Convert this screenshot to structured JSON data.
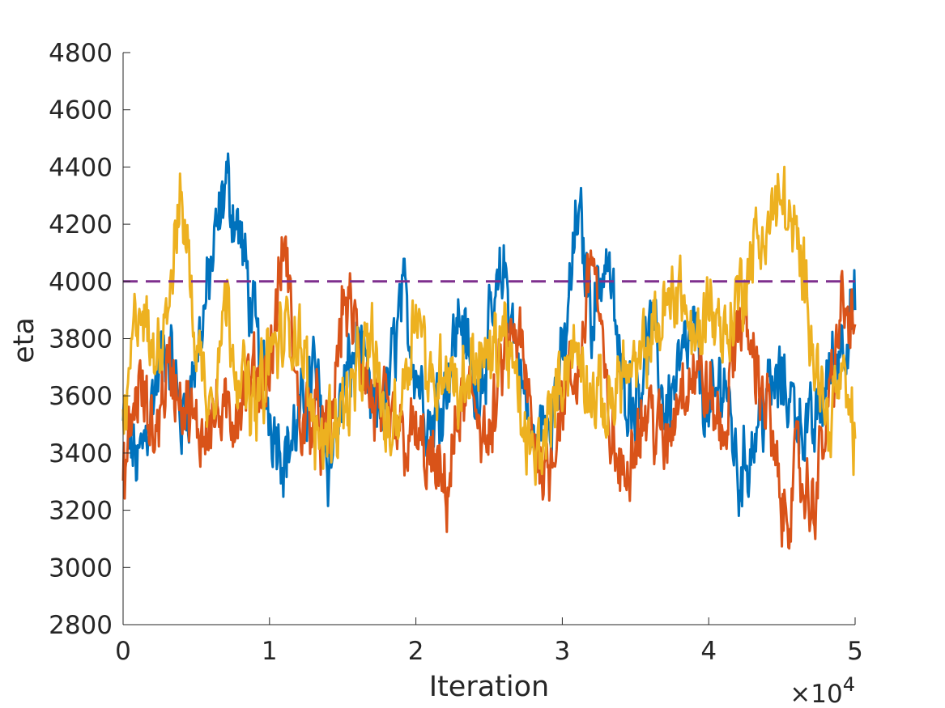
{
  "chart_data": {
    "type": "line",
    "xlabel": "Iteration",
    "ylabel": "eta",
    "x_exponent_label": {
      "base": "×10",
      "exponent": "4"
    },
    "xlim": [
      0,
      50000
    ],
    "ylim": [
      2800,
      4800
    ],
    "x_tick_labels": [
      "0",
      "1",
      "2",
      "3",
      "4",
      "5"
    ],
    "x_ticks": [
      0,
      10000,
      20000,
      30000,
      40000,
      50000
    ],
    "y_ticks": [
      2800,
      3000,
      3200,
      3400,
      3600,
      3800,
      4000,
      4200,
      4400,
      4600,
      4800
    ],
    "grid": false,
    "reference_line": {
      "y": 4000,
      "style": "dashed",
      "color": "#7E2F8E"
    },
    "series": [
      {
        "color": "#0072BD",
        "x": [
          0,
          1000,
          2000,
          3000,
          4000,
          5000,
          6000,
          7000,
          8000,
          9000,
          10000,
          11000,
          12000,
          13000,
          14000,
          15000,
          16000,
          17000,
          18000,
          19000,
          20000,
          21000,
          22000,
          23000,
          24000,
          25000,
          26000,
          27000,
          28000,
          29000,
          30000,
          31000,
          32000,
          33000,
          34000,
          35000,
          36000,
          37000,
          38000,
          39000,
          40000,
          41000,
          42000,
          43000,
          44000,
          45000,
          46000,
          47000,
          48000,
          49000,
          50000
        ],
        "values": [
          3500,
          3350,
          3600,
          3800,
          3500,
          3750,
          4050,
          4350,
          4150,
          3800,
          3550,
          3400,
          3500,
          3700,
          3350,
          3600,
          3800,
          3500,
          3600,
          3950,
          3700,
          3500,
          3650,
          3900,
          3600,
          3800,
          4050,
          3700,
          3400,
          3550,
          3700,
          4250,
          3900,
          4100,
          3650,
          3600,
          3850,
          3550,
          3700,
          3800,
          3500,
          3700,
          3300,
          3450,
          3600,
          3650,
          3550,
          3450,
          3650,
          3800,
          3900
        ]
      },
      {
        "color": "#D95319",
        "x": [
          0,
          1000,
          2000,
          3000,
          4000,
          5000,
          6000,
          7000,
          8000,
          9000,
          10000,
          11000,
          12000,
          13000,
          14000,
          15000,
          16000,
          17000,
          18000,
          19000,
          20000,
          21000,
          22000,
          23000,
          24000,
          25000,
          26000,
          27000,
          28000,
          29000,
          30000,
          31000,
          32000,
          33000,
          34000,
          35000,
          36000,
          37000,
          38000,
          39000,
          40000,
          41000,
          42000,
          43000,
          44000,
          45000,
          46000,
          47000,
          48000,
          49000,
          50000
        ],
        "values": [
          3300,
          3650,
          3450,
          3700,
          3600,
          3450,
          3550,
          3500,
          3600,
          3650,
          3700,
          4150,
          3500,
          3550,
          3400,
          3950,
          3800,
          3550,
          3500,
          3450,
          3450,
          3350,
          3250,
          3550,
          3600,
          3400,
          3750,
          3800,
          3450,
          3350,
          3600,
          3650,
          4150,
          3550,
          3300,
          3500,
          3550,
          3400,
          3650,
          3700,
          3600,
          3450,
          3900,
          3750,
          3550,
          3150,
          3350,
          3200,
          3500,
          3900,
          3850
        ]
      },
      {
        "color": "#EDB120",
        "x": [
          0,
          1000,
          2000,
          3000,
          4000,
          5000,
          6000,
          7000,
          8000,
          9000,
          10000,
          11000,
          12000,
          13000,
          14000,
          15000,
          16000,
          17000,
          18000,
          19000,
          20000,
          21000,
          22000,
          23000,
          24000,
          25000,
          26000,
          27000,
          28000,
          29000,
          30000,
          31000,
          32000,
          33000,
          34000,
          35000,
          36000,
          37000,
          38000,
          39000,
          40000,
          41000,
          42000,
          43000,
          44000,
          45000,
          46000,
          47000,
          48000,
          49000,
          50000
        ],
        "values": [
          3450,
          3950,
          3700,
          3950,
          4300,
          3750,
          3600,
          3950,
          3650,
          3550,
          3750,
          3800,
          3850,
          3450,
          3500,
          3550,
          3650,
          3800,
          3450,
          3600,
          3950,
          3600,
          3750,
          3600,
          3750,
          3700,
          3850,
          3550,
          3350,
          3500,
          3700,
          3750,
          3600,
          3550,
          3700,
          3650,
          3800,
          3900,
          4000,
          3750,
          3950,
          3800,
          3950,
          4100,
          4200,
          4300,
          4100,
          3850,
          3500,
          3650,
          3450
        ]
      }
    ]
  }
}
